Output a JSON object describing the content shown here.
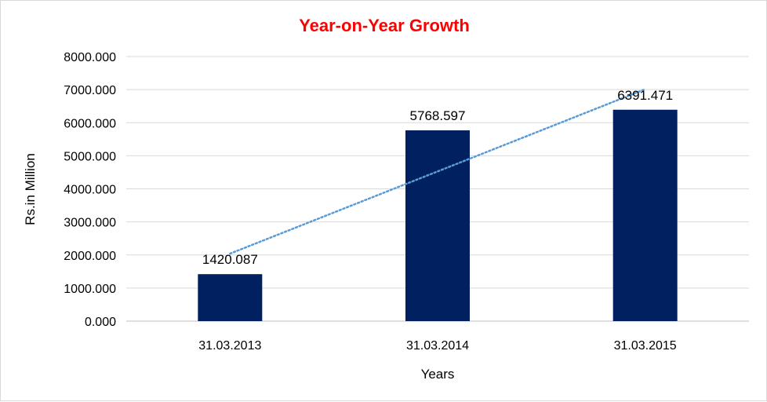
{
  "colors": {
    "bar": "#002060",
    "title": "#ff0000",
    "trendline": "#5b9bd5",
    "gridline": "#d9d9d9",
    "axis": "#bfbfbf"
  },
  "chart_data": {
    "type": "bar",
    "title": "Year-on-Year Growth",
    "xlabel": "Years",
    "ylabel": "Rs.in Million",
    "categories": [
      "31.03.2013",
      "31.03.2014",
      "31.03.2015"
    ],
    "values": [
      1420.087,
      5768.597,
      6391.471
    ],
    "data_labels": [
      "1420.087",
      "5768.597",
      "6391.471"
    ],
    "ylim": [
      0,
      8000
    ],
    "yticks": [
      0,
      1000,
      2000,
      3000,
      4000,
      5000,
      6000,
      7000,
      8000
    ],
    "ytick_labels": [
      "0.000",
      "1000.000",
      "2000.000",
      "3000.000",
      "4000.000",
      "5000.000",
      "6000.000",
      "7000.000",
      "8000.000"
    ],
    "grid": true,
    "trendline": {
      "type": "linear",
      "style": "dotted"
    },
    "legend": "none"
  }
}
